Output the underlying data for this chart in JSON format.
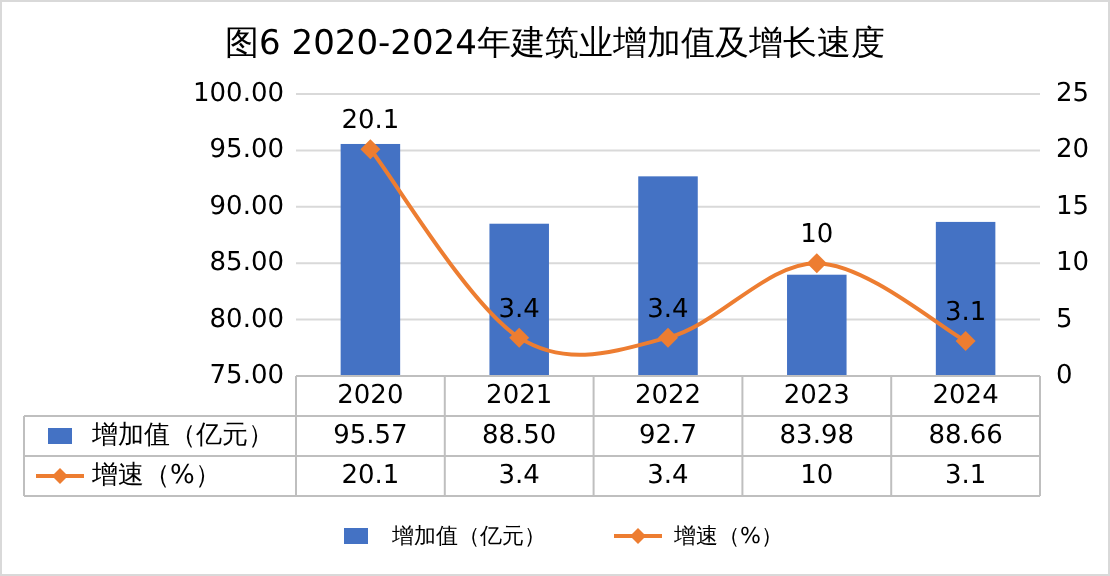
{
  "chart_data": {
    "type": "bar",
    "title": "图6  2020-2024年建筑业增加值及增长速度",
    "categories": [
      "2020",
      "2021",
      "2022",
      "2023",
      "2024"
    ],
    "series": [
      {
        "name": "增加值（亿元）",
        "color": "#4472c4",
        "values": [
          95.57,
          88.5,
          92.7,
          83.98,
          88.66
        ],
        "value_labels": [
          "95.57",
          "88.50",
          "92.7",
          "83.98",
          "88.66"
        ]
      },
      {
        "name": "增速（%）",
        "type": "line",
        "axis": "y2",
        "color": "#ed7d31",
        "values": [
          20.1,
          3.4,
          3.4,
          10,
          3.1
        ],
        "value_labels": [
          "20.1",
          "3.4",
          "3.4",
          "10",
          "3.1"
        ]
      }
    ],
    "ylim": [
      75,
      100
    ],
    "yticks": [
      {
        "value": 75,
        "label": "75.00"
      },
      {
        "value": 80,
        "label": "80.00"
      },
      {
        "value": 85,
        "label": "85.00"
      },
      {
        "value": 90,
        "label": "90.00"
      },
      {
        "value": 95,
        "label": "95.00"
      },
      {
        "value": 100,
        "label": "100.00"
      }
    ],
    "y2lim": [
      0,
      25
    ],
    "y2ticks": [
      0,
      5,
      10,
      15,
      20,
      25
    ],
    "grid": "y",
    "legend": "bottom",
    "marker": "diamond",
    "line_style": "solid"
  }
}
